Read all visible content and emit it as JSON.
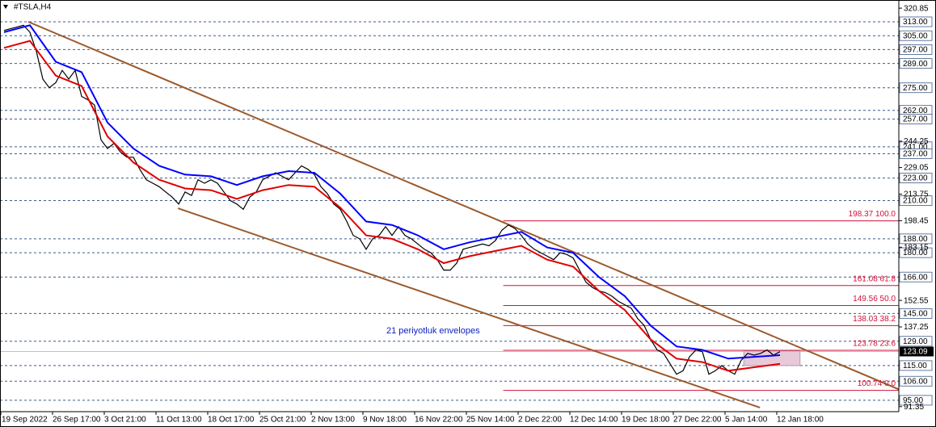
{
  "chart_data": {
    "type": "line",
    "title": "#TSLA,H4",
    "annotation": "21 periyotluk envelopes",
    "xlim": [
      -0.625,
      138.375
    ],
    "ylim": [
      88.45,
      325.55
    ],
    "xticks": [
      {
        "value": -0.5,
        "label": "19 Sep 2022"
      },
      {
        "value": 7.5,
        "label": "26 Sep 17:00"
      },
      {
        "value": 15.5,
        "label": "3 Oct 21:00"
      },
      {
        "value": 23.5,
        "label": "11 Oct 13:00"
      },
      {
        "value": 31.5,
        "label": "18 Oct 17:00"
      },
      {
        "value": 39.5,
        "label": "25 Oct 21:00"
      },
      {
        "value": 47.5,
        "label": "2 Nov 13:00"
      },
      {
        "value": 55.5,
        "label": "9 Nov 18:00"
      },
      {
        "value": 63.5,
        "label": "16 Nov 22:00"
      },
      {
        "value": 71.5,
        "label": "25 Nov 14:00"
      },
      {
        "value": 79.5,
        "label": "2 Dec 22:00"
      },
      {
        "value": 87.5,
        "label": "12 Dec 14:00"
      },
      {
        "value": 95.5,
        "label": "19 Dec 18:00"
      },
      {
        "value": 103.5,
        "label": "27 Dec 22:00"
      },
      {
        "value": 111.5,
        "label": "5 Jan 14:00"
      },
      {
        "value": 119.5,
        "label": "12 Jan 18:00"
      }
    ],
    "yticks": [
      320.85,
      244.25,
      229.05,
      213.75,
      198.45,
      183.15,
      152.55,
      137.25,
      91.35
    ],
    "levels": [
      {
        "value": 313,
        "label": "313.00"
      },
      {
        "value": 305,
        "label": "305.00"
      },
      {
        "value": 297,
        "label": "297.00"
      },
      {
        "value": 289,
        "label": "289.00"
      },
      {
        "value": 275,
        "label": "275.00"
      },
      {
        "value": 262,
        "label": "262.00"
      },
      {
        "value": 257,
        "label": "257.00"
      },
      {
        "value": 241,
        "label": "241.00"
      },
      {
        "value": 237,
        "label": "237.00"
      },
      {
        "value": 223,
        "label": "223.00"
      },
      {
        "value": 210,
        "label": "210.00"
      },
      {
        "value": 188,
        "label": "188.00"
      },
      {
        "value": 180,
        "label": "180.00"
      },
      {
        "value": 166,
        "label": "166.00"
      },
      {
        "value": 145,
        "label": "145.00"
      },
      {
        "value": 129,
        "label": "129.00"
      },
      {
        "value": 115,
        "label": "115.00"
      },
      {
        "value": 106,
        "label": "106.00"
      },
      {
        "value": 95,
        "label": "95.00"
      }
    ],
    "level_color": "#3c5a8a",
    "current": {
      "value": 123.09,
      "label": "123.09"
    },
    "series": [
      {
        "color": "#000000",
        "values": [
          308,
          309,
          310,
          311,
          307,
          296,
          280,
          275,
          278,
          285,
          280,
          285,
          270,
          268,
          265,
          245,
          240,
          243,
          238,
          235,
          235,
          228,
          222,
          220,
          218,
          215,
          212,
          208,
          215,
          213,
          222,
          220,
          222,
          220,
          215,
          210,
          208,
          205,
          212,
          215,
          222,
          224,
          226,
          224,
          222,
          226,
          230,
          228,
          225,
          218,
          214,
          208,
          205,
          198,
          190,
          188,
          182,
          188,
          190,
          195,
          190,
          195,
          190,
          188,
          185,
          182,
          180,
          176,
          170,
          170,
          174,
          182,
          183,
          184,
          185,
          184,
          187,
          193,
          196,
          194,
          190,
          185,
          182,
          180,
          178,
          176,
          180,
          179,
          177,
          170,
          163,
          160,
          158,
          157,
          155,
          152,
          150,
          148,
          142,
          138,
          130,
          124,
          122,
          116,
          110,
          112,
          120,
          124,
          123,
          110,
          112,
          115,
          112,
          110,
          118,
          122,
          121,
          122,
          124,
          121,
          123
        ]
      },
      {
        "color": "#0000ff",
        "x": [
          0,
          4,
          8,
          12,
          16,
          20,
          24,
          28,
          32,
          36,
          40,
          44,
          48,
          52,
          56,
          60,
          64,
          68,
          72,
          76,
          80,
          84,
          88,
          92,
          96,
          100,
          104,
          108,
          112,
          116,
          120
        ],
        "values": [
          307,
          311,
          290,
          284,
          255,
          240,
          230,
          225,
          224,
          219,
          224,
          227,
          226,
          214,
          198,
          196,
          190,
          182,
          186,
          189,
          192,
          183,
          180,
          166,
          155,
          138,
          126,
          124,
          119,
          120,
          121
        ]
      },
      {
        "color": "#e00000",
        "x": [
          0,
          4,
          8,
          12,
          16,
          20,
          24,
          28,
          32,
          36,
          40,
          44,
          48,
          52,
          56,
          60,
          64,
          68,
          72,
          76,
          80,
          84,
          88,
          92,
          96,
          100,
          104,
          108,
          112,
          116,
          120
        ],
        "values": [
          298,
          302,
          282,
          276,
          247,
          232,
          222,
          217,
          216,
          211,
          216,
          219,
          218,
          206,
          190,
          188,
          182,
          174,
          178,
          181,
          184,
          176,
          172,
          158,
          147,
          130,
          119,
          117,
          112,
          114,
          116
        ]
      }
    ],
    "trendlines": [
      {
        "color": "#9c5a2c",
        "x": [
          3.75,
          140.6
        ],
        "values": [
          313,
          97.8
        ]
      },
      {
        "color": "#9c5a2c",
        "x": [
          26.9,
          116.9
        ],
        "values": [
          205.6,
          90.8
        ]
      }
    ],
    "fibonacci": {
      "color": "#d0103a",
      "start": 77.2,
      "values": [
        198.37,
        161.08,
        149.56,
        138.03,
        123.78,
        100.74
      ],
      "value_labels": [
        "198.37 100.0",
        "161.08 61.8",
        "149.56 50.0",
        "138.03 38.2",
        "123.78 23.6",
        "100.74 0.0"
      ]
    },
    "zone": {
      "color": "#e6c3d6",
      "x": [
        114.4,
        123.1
      ],
      "values": [
        115,
        123.3
      ]
    }
  }
}
